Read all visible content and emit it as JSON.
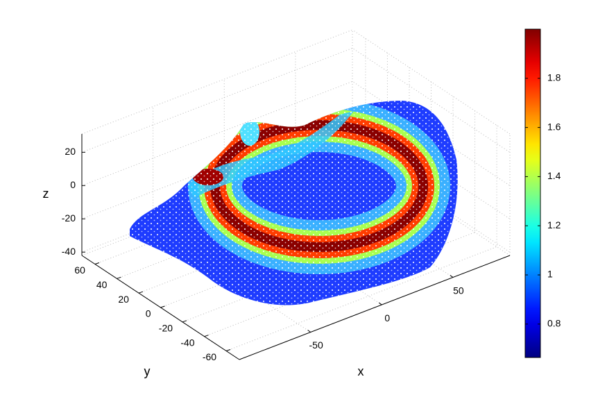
{
  "chart_data": {
    "type": "surface3d",
    "xlabel": "x",
    "ylabel": "y",
    "zlabel": "z",
    "xlim": [
      -100,
      90
    ],
    "xticks": [
      -50,
      0,
      50
    ],
    "ylim": [
      -72,
      72
    ],
    "yticks": [
      -60,
      -40,
      -20,
      0,
      20,
      40,
      60
    ],
    "zlim": [
      -42,
      31
    ],
    "zticks": [
      -40,
      -20,
      0,
      20
    ],
    "grid": true,
    "colormap": "jet",
    "clim": [
      0.664,
      2.0
    ],
    "cticks": [
      0.8,
      1,
      1.2,
      1.4,
      1.6,
      1.8
    ]
  }
}
